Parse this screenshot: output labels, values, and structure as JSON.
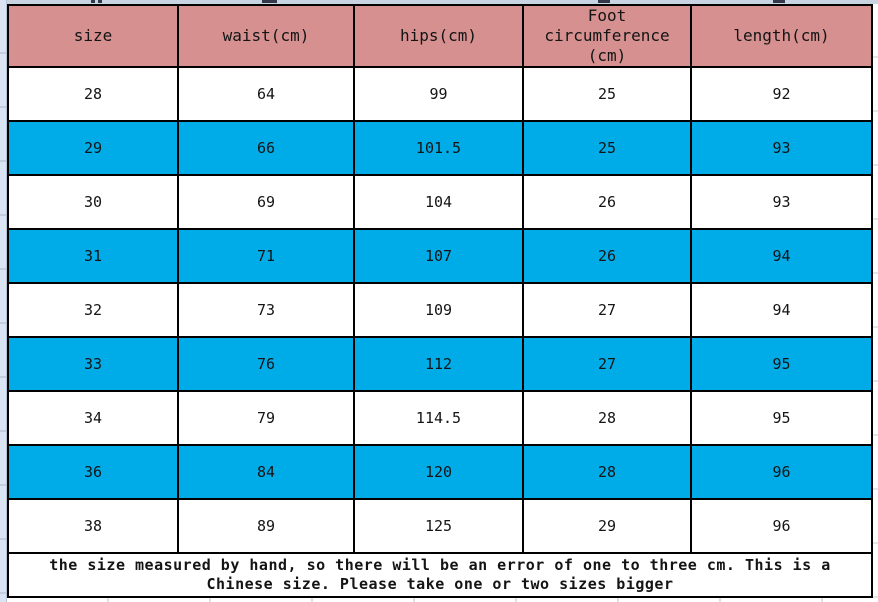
{
  "size_chart": {
    "columns": [
      "size",
      "waist(cm)",
      "hips(cm)",
      "Foot circumference (cm)",
      "length(cm)"
    ],
    "rows": [
      [
        "28",
        "64",
        "99",
        "25",
        "92"
      ],
      [
        "29",
        "66",
        "101.5",
        "25",
        "93"
      ],
      [
        "30",
        "69",
        "104",
        "26",
        "93"
      ],
      [
        "31",
        "71",
        "107",
        "26",
        "94"
      ],
      [
        "32",
        "73",
        "109",
        "27",
        "94"
      ],
      [
        "33",
        "76",
        "112",
        "27",
        "95"
      ],
      [
        "34",
        "79",
        "114.5",
        "28",
        "95"
      ],
      [
        "36",
        "84",
        "120",
        "28",
        "96"
      ],
      [
        "38",
        "89",
        "125",
        "29",
        "96"
      ]
    ],
    "highlighted_rows": [
      "29",
      "31",
      "33",
      "36"
    ]
  },
  "note": "the size measured by hand, so there will be an error of one to three cm. This is a Chinese size. Please take one or two sizes bigger",
  "colors": {
    "header_bg": "#d69090",
    "highlight_bg": "#00ace8",
    "row_bg": "#ffffff",
    "border": "#000000"
  }
}
